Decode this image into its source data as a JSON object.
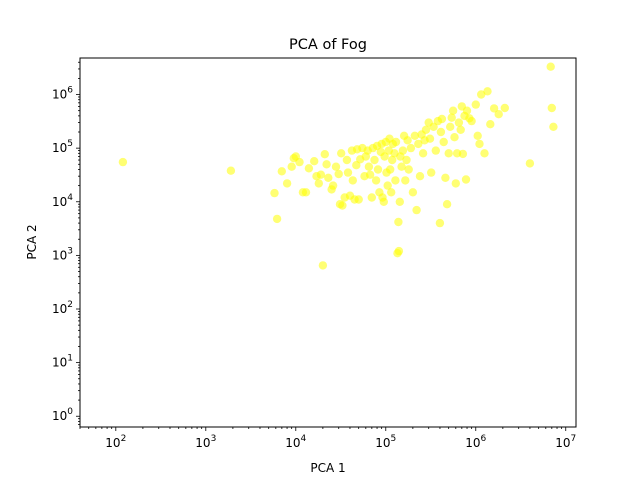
{
  "chart_data": {
    "type": "scatter",
    "title": "PCA of Fog",
    "xlabel": "PCA 1",
    "ylabel": "PCA 2",
    "xscale": "log",
    "yscale": "log",
    "xlim": [
      40,
      13000000
    ],
    "ylim": [
      0.63,
      4800000
    ],
    "x_tick_labels": [
      "10^2",
      "10^3",
      "10^4",
      "10^5",
      "10^6",
      "10^7"
    ],
    "y_tick_labels": [
      "10^0",
      "10^1",
      "10^2",
      "10^3",
      "10^4",
      "10^5",
      "10^6"
    ],
    "grid": false,
    "legend": "none",
    "marker_color": "#ffff00",
    "marker_alpha": 0.55,
    "points": [
      [
        120,
        55000
      ],
      [
        1900,
        38000
      ],
      [
        5800,
        14500
      ],
      [
        6200,
        4800
      ],
      [
        7000,
        37000
      ],
      [
        8000,
        22000
      ],
      [
        9000,
        45000
      ],
      [
        9500,
        65000
      ],
      [
        10000,
        70000
      ],
      [
        11000,
        55000
      ],
      [
        12000,
        15000
      ],
      [
        13000,
        15000
      ],
      [
        14000,
        42000
      ],
      [
        16000,
        57000
      ],
      [
        17000,
        30000
      ],
      [
        18000,
        22000
      ],
      [
        19000,
        32000
      ],
      [
        20000,
        650
      ],
      [
        21000,
        77000
      ],
      [
        22000,
        50000
      ],
      [
        23000,
        28000
      ],
      [
        25000,
        17000
      ],
      [
        26000,
        20000
      ],
      [
        28000,
        45000
      ],
      [
        30000,
        33000
      ],
      [
        31000,
        9000
      ],
      [
        32000,
        80000
      ],
      [
        33000,
        8500
      ],
      [
        35000,
        12000
      ],
      [
        37000,
        60000
      ],
      [
        38000,
        35000
      ],
      [
        40000,
        13000
      ],
      [
        42000,
        90000
      ],
      [
        43000,
        25000
      ],
      [
        45000,
        11000
      ],
      [
        47000,
        48000
      ],
      [
        48000,
        95000
      ],
      [
        50000,
        11000
      ],
      [
        52000,
        62000
      ],
      [
        55000,
        100000
      ],
      [
        58000,
        30000
      ],
      [
        60000,
        70000
      ],
      [
        63000,
        90000
      ],
      [
        65000,
        45000
      ],
      [
        67000,
        32000
      ],
      [
        70000,
        12000
      ],
      [
        72000,
        100000
      ],
      [
        75000,
        60000
      ],
      [
        78000,
        25000
      ],
      [
        80000,
        110000
      ],
      [
        82000,
        40000
      ],
      [
        85000,
        15000
      ],
      [
        88000,
        85000
      ],
      [
        90000,
        120000
      ],
      [
        92000,
        12000
      ],
      [
        95000,
        10000
      ],
      [
        97000,
        70000
      ],
      [
        100000,
        130000
      ],
      [
        102000,
        35000
      ],
      [
        105000,
        20000
      ],
      [
        108000,
        90000
      ],
      [
        110000,
        150000
      ],
      [
        112000,
        40000
      ],
      [
        115000,
        15000
      ],
      [
        118000,
        60000
      ],
      [
        120000,
        120000
      ],
      [
        125000,
        80000
      ],
      [
        128000,
        25000
      ],
      [
        130000,
        130000
      ],
      [
        135000,
        1100
      ],
      [
        138000,
        4200
      ],
      [
        140000,
        1200
      ],
      [
        143000,
        10000
      ],
      [
        145000,
        70000
      ],
      [
        150000,
        45000
      ],
      [
        155000,
        90000
      ],
      [
        160000,
        170000
      ],
      [
        165000,
        25000
      ],
      [
        170000,
        60000
      ],
      [
        175000,
        140000
      ],
      [
        180000,
        40000
      ],
      [
        190000,
        100000
      ],
      [
        200000,
        15000
      ],
      [
        210000,
        170000
      ],
      [
        220000,
        7000
      ],
      [
        230000,
        120000
      ],
      [
        240000,
        30000
      ],
      [
        250000,
        180000
      ],
      [
        260000,
        80000
      ],
      [
        270000,
        140000
      ],
      [
        280000,
        220000
      ],
      [
        300000,
        300000
      ],
      [
        310000,
        150000
      ],
      [
        320000,
        35000
      ],
      [
        340000,
        250000
      ],
      [
        360000,
        90000
      ],
      [
        380000,
        320000
      ],
      [
        400000,
        4000
      ],
      [
        410000,
        200000
      ],
      [
        420000,
        350000
      ],
      [
        440000,
        130000
      ],
      [
        460000,
        28000
      ],
      [
        480000,
        9000
      ],
      [
        500000,
        80000
      ],
      [
        520000,
        250000
      ],
      [
        540000,
        370000
      ],
      [
        560000,
        500000
      ],
      [
        580000,
        160000
      ],
      [
        600000,
        22000
      ],
      [
        620000,
        80000
      ],
      [
        650000,
        300000
      ],
      [
        680000,
        220000
      ],
      [
        700000,
        600000
      ],
      [
        720000,
        78000
      ],
      [
        750000,
        400000
      ],
      [
        780000,
        26000
      ],
      [
        800000,
        500000
      ],
      [
        850000,
        360000
      ],
      [
        900000,
        320000
      ],
      [
        1000000,
        650000
      ],
      [
        1050000,
        170000
      ],
      [
        1100000,
        120000
      ],
      [
        1150000,
        1000000
      ],
      [
        1250000,
        80000
      ],
      [
        1350000,
        1150000
      ],
      [
        1450000,
        280000
      ],
      [
        1600000,
        550000
      ],
      [
        1800000,
        430000
      ],
      [
        2100000,
        560000
      ],
      [
        4000000,
        52000
      ],
      [
        6800000,
        3300000
      ],
      [
        7000000,
        560000
      ],
      [
        7300000,
        250000
      ]
    ]
  }
}
